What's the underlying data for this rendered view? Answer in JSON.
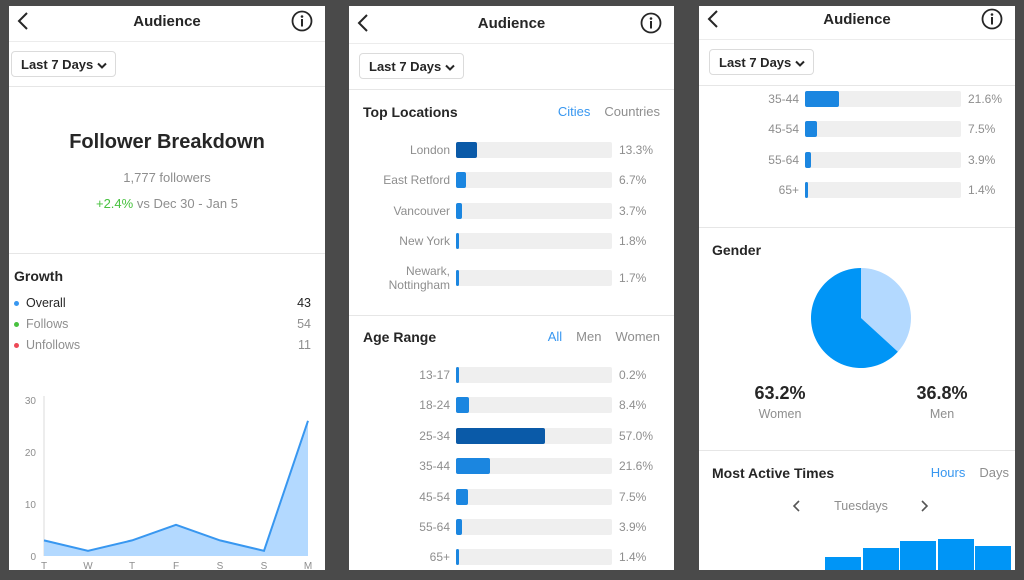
{
  "panel1": {
    "title": "Audience",
    "range": "Last 7 Days",
    "breakdown_title": "Follower Breakdown",
    "followers": "1,777 followers",
    "change": "+2.4%",
    "change_rest": " vs Dec 30 - Jan 5",
    "growth_title": "Growth",
    "legend": [
      {
        "label": "Overall",
        "value": "43",
        "color": "#3897f0"
      },
      {
        "label": "Follows",
        "value": "54",
        "color": "#48c13f"
      },
      {
        "label": "Unfollows",
        "value": "11",
        "color": "#ed4956"
      }
    ]
  },
  "chart_data": {
    "type": "area",
    "categories": [
      "T",
      "W",
      "T",
      "F",
      "S",
      "S",
      "M"
    ],
    "values": [
      3,
      1,
      3,
      6,
      3,
      1,
      26
    ],
    "yticks": [
      0,
      10,
      20,
      30
    ],
    "ylim": [
      0,
      30
    ],
    "color": "#3897f0",
    "fill": "#b3d9ff"
  },
  "panel2": {
    "title": "Audience",
    "range": "Last 7 Days",
    "locations_title": "Top Locations",
    "location_tabs": [
      "Cities",
      "Countries"
    ],
    "locations": [
      {
        "label": "London",
        "pct": "13.3%",
        "value": 13.3
      },
      {
        "label": "East Retford",
        "pct": "6.7%",
        "value": 6.7
      },
      {
        "label": "Vancouver",
        "pct": "3.7%",
        "value": 3.7
      },
      {
        "label": "New York",
        "pct": "1.8%",
        "value": 1.8
      },
      {
        "label": "Newark, Nottingham",
        "pct": "1.7%",
        "value": 1.7
      }
    ],
    "age_title": "Age Range",
    "age_tabs": [
      "All",
      "Men",
      "Women"
    ],
    "ages": [
      {
        "label": "13-17",
        "pct": "0.2%",
        "value": 0.2
      },
      {
        "label": "18-24",
        "pct": "8.4%",
        "value": 8.4
      },
      {
        "label": "25-34",
        "pct": "57.0%",
        "value": 57.0
      },
      {
        "label": "35-44",
        "pct": "21.6%",
        "value": 21.6
      },
      {
        "label": "45-54",
        "pct": "7.5%",
        "value": 7.5
      },
      {
        "label": "55-64",
        "pct": "3.9%",
        "value": 3.9
      },
      {
        "label": "65+",
        "pct": "1.4%",
        "value": 1.4
      }
    ]
  },
  "panel3": {
    "title": "Audience",
    "range": "Last 7 Days",
    "ages": [
      {
        "label": "35-44",
        "pct": "21.6%",
        "value": 21.6
      },
      {
        "label": "45-54",
        "pct": "7.5%",
        "value": 7.5
      },
      {
        "label": "55-64",
        "pct": "3.9%",
        "value": 3.9
      },
      {
        "label": "65+",
        "pct": "1.4%",
        "value": 1.4
      }
    ],
    "gender_title": "Gender",
    "gender": [
      {
        "value": "63.2%",
        "label": "Women",
        "share": 63.2,
        "color": "#0095f6"
      },
      {
        "value": "36.8%",
        "label": "Men",
        "share": 36.8,
        "color": "#b3d9ff"
      }
    ],
    "active_title": "Most Active Times",
    "active_tabs": [
      "Hours",
      "Days"
    ],
    "day": "Tuesdays",
    "hour_bars": [
      0.42,
      0.7,
      0.95,
      1.0,
      0.78
    ]
  },
  "colors": {
    "bar_max": "#0a5aa8",
    "bar": "#1b86e0"
  }
}
